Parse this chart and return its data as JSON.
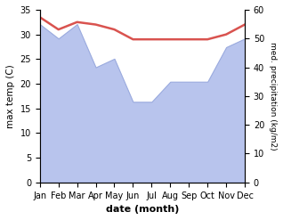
{
  "months": [
    "Jan",
    "Feb",
    "Mar",
    "Apr",
    "May",
    "Jun",
    "Jul",
    "Aug",
    "Sep",
    "Oct",
    "Nov",
    "Dec"
  ],
  "temperature": [
    33.5,
    31.0,
    32.5,
    32.0,
    31.0,
    29.0,
    29.0,
    29.0,
    29.0,
    29.0,
    30.0,
    32.0
  ],
  "precipitation": [
    55,
    50,
    55,
    40,
    43,
    28,
    28,
    35,
    35,
    35,
    47,
    50
  ],
  "temp_color": "#d9534f",
  "precip_color": "#b8c4ed",
  "precip_edge_color": "#9aaade",
  "temp_ylim": [
    0,
    35
  ],
  "precip_ylim": [
    0,
    60
  ],
  "xlabel": "date (month)",
  "ylabel_left": "max temp (C)",
  "ylabel_right": "med. precipitation (kg/m2)",
  "temp_linewidth": 1.8
}
